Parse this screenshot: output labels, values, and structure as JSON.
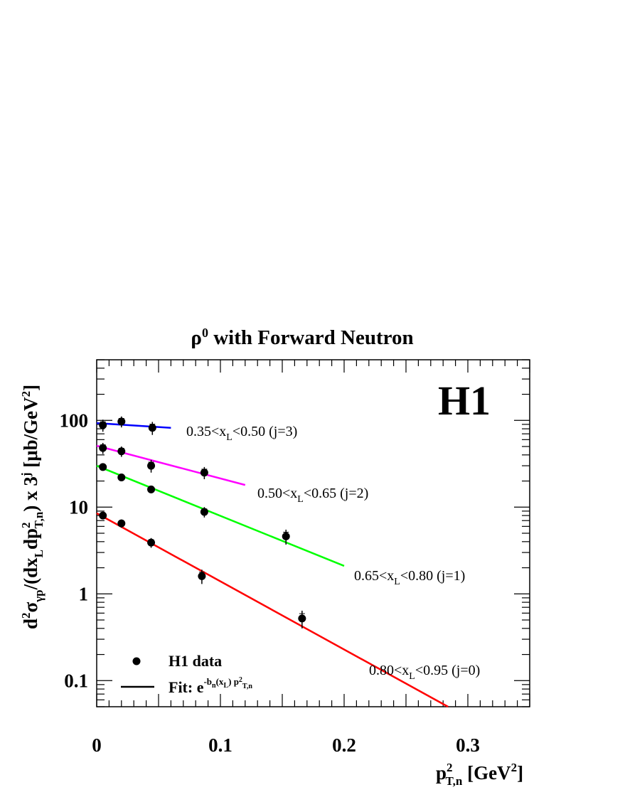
{
  "chart_data": {
    "type": "scatter",
    "title": "ρ⁰ with Forward Neutron",
    "experiment": "H1",
    "xlabel": "p²_T,n [GeV²]",
    "ylabel": "d²σ_γp/(dx_L dp²_T,n) x 3^j [μb/GeV²]",
    "xlim": [
      0,
      0.35
    ],
    "ylim": [
      0.05,
      500
    ],
    "yscale": "log",
    "x_ticks": [
      "0",
      "0.1",
      "0.2",
      "0.3"
    ],
    "y_ticks": [
      "0.1",
      "1",
      "10",
      "100"
    ],
    "legend": {
      "placement": "bottom-left",
      "data_label": "H1 data",
      "fit_label": "Fit:"
    },
    "series": [
      {
        "name": "0.80<x_L<0.95 (j=0)",
        "color": "#ff0000",
        "x": [
          0.005,
          0.02,
          0.044,
          0.085,
          0.166
        ],
        "y": [
          8.0,
          6.5,
          3.9,
          1.6,
          0.52
        ],
        "yerr": [
          0.6,
          0.7,
          0.5,
          0.3,
          0.12
        ],
        "fit": {
          "x0": 0.0,
          "y0": 8.5,
          "x1": 0.284,
          "y1": 0.05
        }
      },
      {
        "name": "0.65<x_L<0.80 (j=1)",
        "color": "#00ff00",
        "x": [
          0.005,
          0.02,
          0.044,
          0.087,
          0.153
        ],
        "y": [
          29.0,
          22.0,
          16.0,
          8.8,
          4.6
        ],
        "yerr": [
          2.0,
          2.0,
          1.5,
          1.2,
          0.9
        ],
        "fit": {
          "x0": 0.0,
          "y0": 30.0,
          "x1": 0.2,
          "y1": 2.1
        }
      },
      {
        "name": "0.50<x_L<0.65 (j=2)",
        "color": "#ff00ff",
        "x": [
          0.005,
          0.02,
          0.044,
          0.087
        ],
        "y": [
          48.0,
          44.0,
          30.0,
          25.0
        ],
        "yerr": [
          7.0,
          6.0,
          5.0,
          4.0
        ],
        "fit": {
          "x0": 0.0,
          "y0": 51.0,
          "x1": 0.12,
          "y1": 18.0
        }
      },
      {
        "name": "0.35<x_L<0.50 (j=3)",
        "color": "#0000ff",
        "x": [
          0.005,
          0.02,
          0.045
        ],
        "y": [
          88.0,
          97.0,
          82.0
        ],
        "yerr": [
          14.0,
          14.0,
          14.0
        ],
        "fit": {
          "x0": 0.0,
          "y0": 93.0,
          "x1": 0.06,
          "y1": 82.0
        }
      }
    ]
  }
}
